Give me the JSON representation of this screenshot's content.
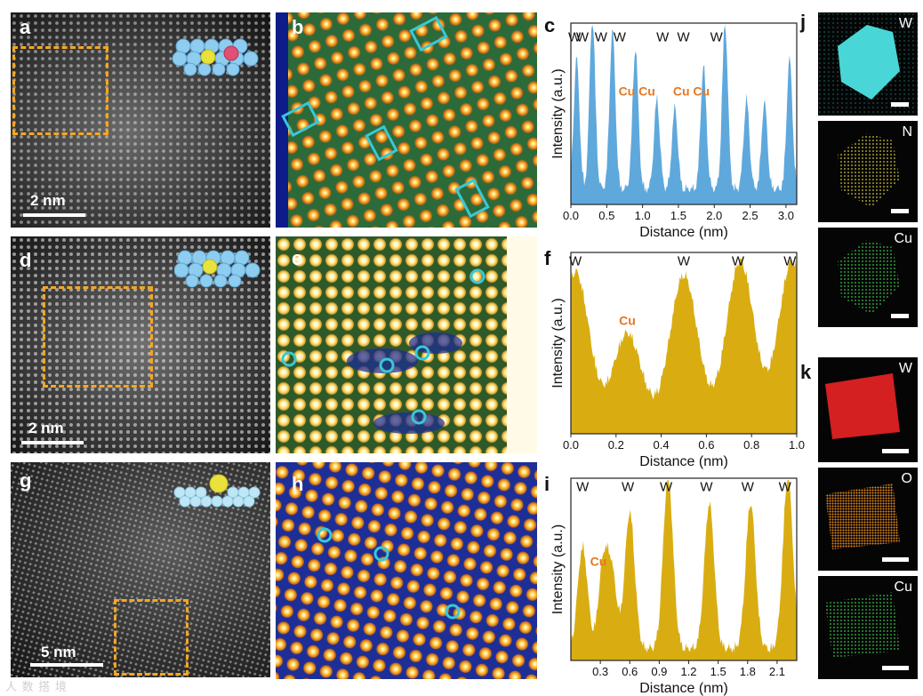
{
  "colors": {
    "w_fill": "#5fa8dc",
    "gold_fill": "#d9ad12",
    "cu_text": "#e87722",
    "highlight": "#38c8d8",
    "dash": "#f5a623"
  },
  "panels": {
    "a": {
      "label": "a",
      "scale_text": "2 nm"
    },
    "b": {
      "label": "b"
    },
    "c": {
      "label": "c"
    },
    "d": {
      "label": "d",
      "scale_text": "2 nm"
    },
    "e": {
      "label": "e"
    },
    "f": {
      "label": "f"
    },
    "g": {
      "label": "g",
      "scale_text": "5 nm"
    },
    "h": {
      "label": "h"
    },
    "i": {
      "label": "i"
    },
    "j": {
      "label": "j",
      "maps": [
        "W",
        "N",
        "Cu"
      ]
    },
    "k": {
      "label": "k",
      "maps": [
        "W",
        "O",
        "Cu"
      ]
    }
  },
  "watermark": "人 数 搭 境",
  "chart_data": [
    {
      "id": "c",
      "type": "area",
      "xlabel": "Distance (nm)",
      "ylabel": "Intensity (a.u.)",
      "xlim": [
        0,
        3.15
      ],
      "ylim": [
        0,
        1
      ],
      "xticks": [
        0.0,
        0.5,
        1.0,
        1.5,
        2.0,
        2.5,
        3.0
      ],
      "xticklabels": [
        "0.0",
        "0.5",
        "1.0",
        "1.5",
        "2.0",
        "2.5",
        "3.0"
      ],
      "peaks": [
        {
          "x": 0.08,
          "h": 0.72
        },
        {
          "x": 0.3,
          "h": 0.95
        },
        {
          "x": 0.58,
          "h": 0.88
        },
        {
          "x": 0.9,
          "h": 0.78
        },
        {
          "x": 1.2,
          "h": 0.5
        },
        {
          "x": 1.45,
          "h": 0.45
        },
        {
          "x": 1.85,
          "h": 0.68
        },
        {
          "x": 2.15,
          "h": 0.92
        },
        {
          "x": 2.45,
          "h": 0.5
        },
        {
          "x": 2.7,
          "h": 0.48
        },
        {
          "x": 3.05,
          "h": 0.72
        }
      ],
      "peak_width": 0.04,
      "baseline": 0.06,
      "annotations": [
        {
          "text": "W",
          "x": 0.05,
          "y": 0.9,
          "color": "dark"
        },
        {
          "text": "W",
          "x": 0.16,
          "y": 0.9,
          "color": "dark"
        },
        {
          "text": "W",
          "x": 0.42,
          "y": 0.9,
          "color": "dark"
        },
        {
          "text": "W",
          "x": 0.68,
          "y": 0.9,
          "color": "dark"
        },
        {
          "text": "W",
          "x": 1.28,
          "y": 0.9,
          "color": "dark"
        },
        {
          "text": "W",
          "x": 1.57,
          "y": 0.9,
          "color": "dark"
        },
        {
          "text": "W",
          "x": 2.03,
          "y": 0.9,
          "color": "dark"
        },
        {
          "text": "Cu Cu",
          "x": 0.92,
          "y": 0.6,
          "color": "cu"
        },
        {
          "text": "Cu Cu",
          "x": 1.68,
          "y": 0.6,
          "color": "cu"
        }
      ]
    },
    {
      "id": "f",
      "type": "area",
      "xlabel": "Distance (nm)",
      "ylabel": "Intensity (a.u.)",
      "xlim": [
        0,
        1.0
      ],
      "ylim": [
        0,
        1
      ],
      "xticks": [
        0.0,
        0.2,
        0.4,
        0.6,
        0.8,
        1.0
      ],
      "xticklabels": [
        "0.0",
        "0.2",
        "0.4",
        "0.6",
        "0.8",
        "1.0"
      ],
      "peaks": [
        {
          "x": 0.02,
          "h": 0.82
        },
        {
          "x": 0.25,
          "h": 0.48
        },
        {
          "x": 0.5,
          "h": 0.8
        },
        {
          "x": 0.75,
          "h": 0.88
        },
        {
          "x": 0.98,
          "h": 0.88
        }
      ],
      "peak_width": 0.06,
      "baseline": 0.05,
      "annotations": [
        {
          "text": "W",
          "x": 0.02,
          "y": 0.93,
          "color": "dark"
        },
        {
          "text": "W",
          "x": 0.5,
          "y": 0.93,
          "color": "dark"
        },
        {
          "text": "W",
          "x": 0.74,
          "y": 0.93,
          "color": "dark"
        },
        {
          "text": "W",
          "x": 0.97,
          "y": 0.93,
          "color": "dark"
        },
        {
          "text": "Cu",
          "x": 0.25,
          "y": 0.6,
          "color": "cu"
        }
      ]
    },
    {
      "id": "i",
      "type": "area",
      "xlabel": "Distance (nm)",
      "ylabel": "Intensity (a.u.)",
      "xlim": [
        0,
        2.3
      ],
      "ylim": [
        0,
        1
      ],
      "xticks": [
        0.3,
        0.6,
        0.9,
        1.2,
        1.5,
        1.8,
        2.1
      ],
      "xticklabels": [
        "0.3",
        "0.6",
        "0.9",
        "1.2",
        "1.5",
        "1.8",
        "2.1"
      ],
      "peaks": [
        {
          "x": 0.12,
          "h": 0.56
        },
        {
          "x": 0.33,
          "h": 0.45
        },
        {
          "x": 0.42,
          "h": 0.38
        },
        {
          "x": 0.6,
          "h": 0.75
        },
        {
          "x": 0.99,
          "h": 0.95
        },
        {
          "x": 1.41,
          "h": 0.8
        },
        {
          "x": 1.83,
          "h": 0.8
        },
        {
          "x": 2.21,
          "h": 0.95
        }
      ],
      "peak_width": 0.05,
      "baseline": 0.04,
      "annotations": [
        {
          "text": "W",
          "x": 0.12,
          "y": 0.93,
          "color": "dark"
        },
        {
          "text": "W",
          "x": 0.58,
          "y": 0.93,
          "color": "dark"
        },
        {
          "text": "W",
          "x": 0.97,
          "y": 0.93,
          "color": "dark"
        },
        {
          "text": "W",
          "x": 1.38,
          "y": 0.93,
          "color": "dark"
        },
        {
          "text": "W",
          "x": 1.8,
          "y": 0.93,
          "color": "dark"
        },
        {
          "text": "W",
          "x": 2.18,
          "y": 0.93,
          "color": "dark"
        },
        {
          "text": "Cu",
          "x": 0.28,
          "y": 0.52,
          "color": "cu"
        }
      ]
    }
  ]
}
